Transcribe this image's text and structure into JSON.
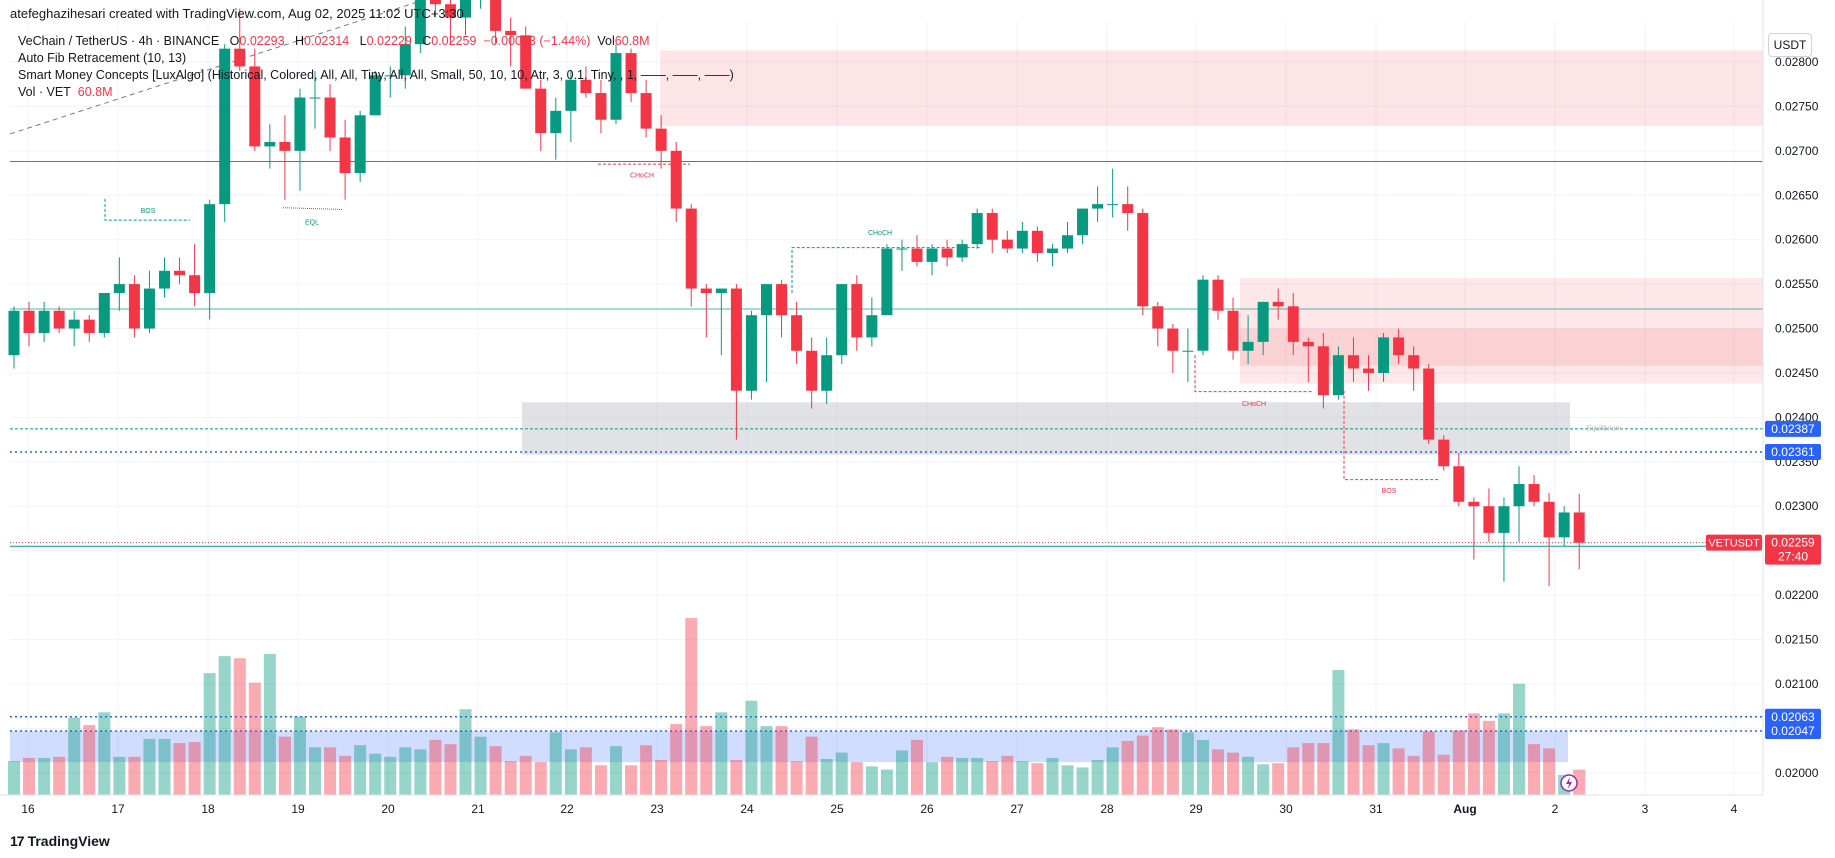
{
  "header": {
    "credit": "atefeghazihesari created with TradingView.com, Aug 02, 2025 11:02 UTC+3:30"
  },
  "legend": {
    "symbol": "VeChain / TetherUS · 4h · BINANCE",
    "o_label": "O",
    "o_value": "0.02293",
    "h_label": "H",
    "h_value": "0.02314",
    "l_label": "L",
    "l_value": "0.02229",
    "c_label": "C",
    "c_value": "0.02259",
    "change": "−0.00033 (−1.44%)",
    "vol_label": "Vol",
    "vol_value": "60.8M",
    "fib": "Auto Fib Retracement (10, 13)",
    "smc": "Smart Money Concepts [LuxAlgo] (Historical, Colored, All, All, Tiny, All, All, Small, 50, 10, 10, Atr, 3, 0.1, Tiny, , 1, ——, ——, ——)",
    "vol_line_label": "Vol · VET",
    "vol_line_value": "60.8M"
  },
  "unit": "USDT",
  "footer": {
    "brand": "TradingView",
    "mark": "17"
  },
  "colors": {
    "up": "#089981",
    "down": "#f23645",
    "grid": "#f0f3fa",
    "blue": "#2962ff"
  },
  "chart_data": {
    "type": "candlestick",
    "timeframe": "4h",
    "y_ticks": [
      "0.02800",
      "0.02750",
      "0.02700",
      "0.02650",
      "0.02600",
      "0.02550",
      "0.02500",
      "0.02450",
      "0.02400",
      "0.02350",
      "0.02300",
      "0.02250",
      "0.02200",
      "0.02150",
      "0.02100",
      "0.02050",
      "0.02000"
    ],
    "ylim": [
      0.01975,
      0.02845
    ],
    "x_ticks": [
      "16",
      "17",
      "18",
      "19",
      "20",
      "21",
      "22",
      "23",
      "24",
      "25",
      "26",
      "27",
      "28",
      "29",
      "30",
      "31",
      "Aug",
      "2",
      "3",
      "4"
    ],
    "price_labels": [
      {
        "text": "0.02387",
        "value": 0.02387,
        "color": "#2962ff"
      },
      {
        "text": "0.02361",
        "value": 0.02361,
        "color": "#2962ff"
      },
      {
        "text": "0.02259",
        "value": 0.02259,
        "color": "#f23645",
        "sub": "27:40",
        "tag": "VETUSDT"
      },
      {
        "text": "0.02063",
        "value": 0.02063,
        "color": "#2962ff"
      },
      {
        "text": "0.02047",
        "value": 0.02047,
        "color": "#2962ff"
      }
    ],
    "annotations": [
      "BOS",
      "EQL",
      "CHoCH",
      "CHoCH",
      "CHoCH",
      "BOS",
      "Equilibrium"
    ],
    "candles": [
      [
        0.0247,
        0.02525,
        0.02455,
        0.0252
      ],
      [
        0.0252,
        0.0253,
        0.0248,
        0.02495
      ],
      [
        0.02495,
        0.0253,
        0.02485,
        0.0252
      ],
      [
        0.0252,
        0.02525,
        0.02495,
        0.025
      ],
      [
        0.025,
        0.0252,
        0.0248,
        0.0251
      ],
      [
        0.0251,
        0.02515,
        0.02485,
        0.02495
      ],
      [
        0.02495,
        0.0254,
        0.0249,
        0.0254
      ],
      [
        0.0254,
        0.0258,
        0.0252,
        0.0255
      ],
      [
        0.0255,
        0.0256,
        0.0249,
        0.025
      ],
      [
        0.025,
        0.02565,
        0.02495,
        0.02545
      ],
      [
        0.02545,
        0.0258,
        0.02535,
        0.02565
      ],
      [
        0.02565,
        0.0258,
        0.0255,
        0.0256
      ],
      [
        0.0256,
        0.02595,
        0.02525,
        0.0254
      ],
      [
        0.0254,
        0.02645,
        0.0251,
        0.0264
      ],
      [
        0.0264,
        0.0282,
        0.0262,
        0.02815
      ],
      [
        0.02815,
        0.0286,
        0.0279,
        0.02795
      ],
      [
        0.02795,
        0.02815,
        0.027,
        0.02705
      ],
      [
        0.02705,
        0.0273,
        0.0268,
        0.0271
      ],
      [
        0.0271,
        0.0274,
        0.02645,
        0.027
      ],
      [
        0.027,
        0.0277,
        0.02655,
        0.0276
      ],
      [
        0.0276,
        0.0279,
        0.02725,
        0.0276
      ],
      [
        0.0276,
        0.02775,
        0.027,
        0.02715
      ],
      [
        0.02715,
        0.02735,
        0.02645,
        0.02675
      ],
      [
        0.02675,
        0.02745,
        0.02665,
        0.0274
      ],
      [
        0.0274,
        0.0279,
        0.0274,
        0.02785
      ],
      [
        0.02785,
        0.02795,
        0.0276,
        0.02785
      ],
      [
        0.02785,
        0.0284,
        0.0277,
        0.0282
      ],
      [
        0.0282,
        0.02905,
        0.0281,
        0.0289
      ],
      [
        0.0289,
        0.02905,
        0.0285,
        0.02865
      ],
      [
        0.02865,
        0.029,
        0.0282,
        0.0285
      ],
      [
        0.0285,
        0.0289,
        0.0283,
        0.0288
      ],
      [
        0.0288,
        0.029,
        0.0286,
        0.0288
      ],
      [
        0.0288,
        0.029,
        0.0282,
        0.02835
      ],
      [
        0.02835,
        0.0285,
        0.02795,
        0.0283
      ],
      [
        0.0283,
        0.0284,
        0.0277,
        0.0277
      ],
      [
        0.0277,
        0.0278,
        0.027,
        0.0272
      ],
      [
        0.0272,
        0.0276,
        0.0269,
        0.02745
      ],
      [
        0.02745,
        0.0279,
        0.0271,
        0.0278
      ],
      [
        0.0278,
        0.02795,
        0.0276,
        0.02765
      ],
      [
        0.02765,
        0.0278,
        0.0272,
        0.02735
      ],
      [
        0.02735,
        0.0282,
        0.0273,
        0.0281
      ],
      [
        0.0281,
        0.02815,
        0.02755,
        0.02765
      ],
      [
        0.02765,
        0.0278,
        0.02715,
        0.02725
      ],
      [
        0.02725,
        0.0274,
        0.0268,
        0.027
      ],
      [
        0.027,
        0.0271,
        0.0262,
        0.02635
      ],
      [
        0.02635,
        0.0264,
        0.02525,
        0.02545
      ],
      [
        0.02545,
        0.0255,
        0.0249,
        0.0254
      ],
      [
        0.0254,
        0.02545,
        0.0247,
        0.02545
      ],
      [
        0.02545,
        0.0255,
        0.02375,
        0.0243
      ],
      [
        0.0243,
        0.0252,
        0.0242,
        0.02515
      ],
      [
        0.02515,
        0.0255,
        0.0244,
        0.0255
      ],
      [
        0.0255,
        0.02555,
        0.0249,
        0.02515
      ],
      [
        0.02515,
        0.0253,
        0.0246,
        0.02475
      ],
      [
        0.02475,
        0.0249,
        0.0241,
        0.0243
      ],
      [
        0.0243,
        0.0249,
        0.02415,
        0.0247
      ],
      [
        0.0247,
        0.0255,
        0.0246,
        0.0255
      ],
      [
        0.0255,
        0.0256,
        0.02475,
        0.0249
      ],
      [
        0.0249,
        0.02535,
        0.0248,
        0.02515
      ],
      [
        0.02515,
        0.02595,
        0.02515,
        0.0259
      ],
      [
        0.0259,
        0.026,
        0.02565,
        0.0259
      ],
      [
        0.0259,
        0.02605,
        0.0257,
        0.02575
      ],
      [
        0.02575,
        0.02595,
        0.0256,
        0.0259
      ],
      [
        0.0259,
        0.026,
        0.0257,
        0.0258
      ],
      [
        0.0258,
        0.026,
        0.02575,
        0.02595
      ],
      [
        0.02595,
        0.02635,
        0.0259,
        0.0263
      ],
      [
        0.0263,
        0.02635,
        0.02585,
        0.026
      ],
      [
        0.026,
        0.0261,
        0.02585,
        0.0259
      ],
      [
        0.0259,
        0.0262,
        0.02585,
        0.0261
      ],
      [
        0.0261,
        0.02615,
        0.02575,
        0.02585
      ],
      [
        0.02585,
        0.02595,
        0.0257,
        0.0259
      ],
      [
        0.0259,
        0.0262,
        0.02585,
        0.02605
      ],
      [
        0.02605,
        0.02635,
        0.02595,
        0.02635
      ],
      [
        0.02635,
        0.0266,
        0.0262,
        0.0264
      ],
      [
        0.0264,
        0.0268,
        0.02625,
        0.0264
      ],
      [
        0.0264,
        0.0266,
        0.0261,
        0.0263
      ],
      [
        0.0263,
        0.02635,
        0.02515,
        0.02525
      ],
      [
        0.02525,
        0.0253,
        0.0248,
        0.025
      ],
      [
        0.025,
        0.02505,
        0.0245,
        0.02475
      ],
      [
        0.02475,
        0.025,
        0.0244,
        0.02475
      ],
      [
        0.02475,
        0.0256,
        0.0247,
        0.02555
      ],
      [
        0.02555,
        0.0256,
        0.0251,
        0.0252
      ],
      [
        0.0252,
        0.02535,
        0.02465,
        0.02475
      ],
      [
        0.02475,
        0.02515,
        0.0246,
        0.02485
      ],
      [
        0.02485,
        0.0253,
        0.0247,
        0.0253
      ],
      [
        0.0253,
        0.02545,
        0.0251,
        0.02525
      ],
      [
        0.02525,
        0.0254,
        0.0247,
        0.02485
      ],
      [
        0.02485,
        0.0249,
        0.0244,
        0.0248
      ],
      [
        0.0248,
        0.02495,
        0.0241,
        0.02425
      ],
      [
        0.02425,
        0.0248,
        0.0242,
        0.0247
      ],
      [
        0.0247,
        0.0249,
        0.0244,
        0.02455
      ],
      [
        0.02455,
        0.0247,
        0.0243,
        0.0245
      ],
      [
        0.0245,
        0.02495,
        0.0244,
        0.0249
      ],
      [
        0.0249,
        0.025,
        0.0246,
        0.0247
      ],
      [
        0.0247,
        0.0248,
        0.0243,
        0.02455
      ],
      [
        0.02455,
        0.0246,
        0.0237,
        0.02375
      ],
      [
        0.02375,
        0.0238,
        0.0234,
        0.02345
      ],
      [
        0.02345,
        0.0236,
        0.023,
        0.02305
      ],
      [
        0.02305,
        0.0231,
        0.0224,
        0.023
      ],
      [
        0.023,
        0.0232,
        0.0226,
        0.0227
      ],
      [
        0.0227,
        0.0231,
        0.02215,
        0.023
      ],
      [
        0.023,
        0.02345,
        0.0226,
        0.02325
      ],
      [
        0.02325,
        0.02335,
        0.023,
        0.02305
      ],
      [
        0.02305,
        0.02315,
        0.0221,
        0.02265
      ],
      [
        0.02265,
        0.023,
        0.02255,
        0.02293
      ],
      [
        0.02293,
        0.02314,
        0.02229,
        0.02259
      ]
    ],
    "volumes": [
      3.2,
      3.5,
      3.5,
      3.6,
      7.3,
      6.6,
      7.8,
      3.6,
      3.6,
      5.3,
      5.3,
      4.9,
      5.0,
      11.5,
      13.1,
      12.9,
      10.6,
      13.3,
      5.5,
      7.4,
      4.5,
      4.5,
      3.7,
      4.7,
      3.9,
      3.6,
      4.5,
      4.3,
      5.2,
      4.8,
      8.1,
      5.5,
      4.6,
      3.2,
      3.7,
      3.1,
      5.9,
      4.3,
      4.5,
      2.8,
      4.6,
      2.8,
      4.7,
      3.3,
      6.7,
      16.7,
      6.5,
      7.8,
      3.3,
      8.9,
      6.5,
      6.5,
      3.2,
      5.5,
      3.4,
      4.0,
      3.1,
      2.7,
      2.4,
      4.2,
      5.2,
      3.1,
      3.6,
      3.5,
      3.5,
      3.2,
      3.7,
      3.2,
      3.0,
      3.5,
      2.8,
      2.6,
      3.3,
      4.5,
      5.1,
      5.6,
      6.4,
      6.2,
      5.9,
      5.2,
      4.3,
      4.0,
      3.6,
      2.9,
      3.0,
      4.5,
      4.9,
      4.9,
      11.8,
      6.2,
      4.7,
      4.9,
      4.4,
      3.7,
      6.0,
      3.8,
      6.1,
      7.7,
      7.0,
      7.7,
      10.5,
      4.8,
      4.4,
      1.9,
      2.4
    ]
  }
}
